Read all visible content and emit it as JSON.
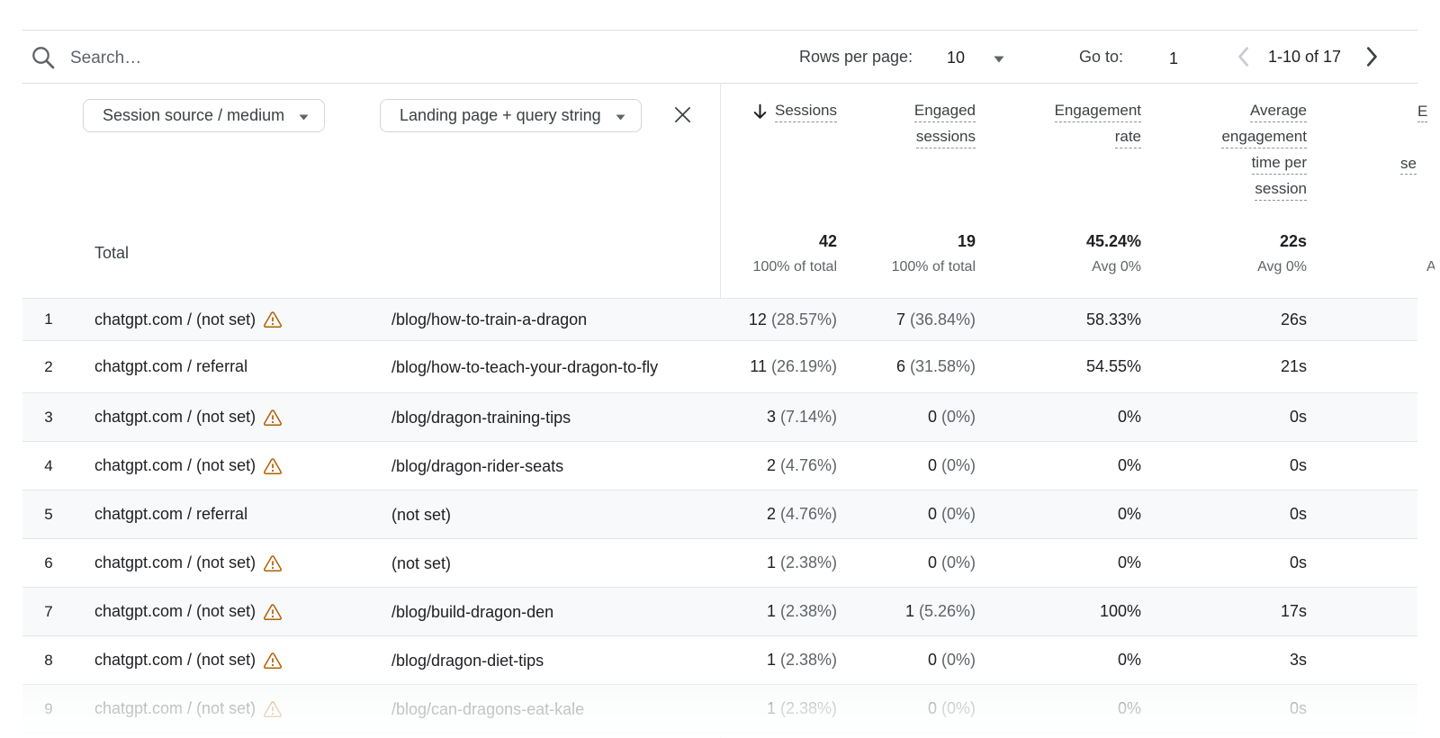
{
  "toolbar": {
    "search_placeholder": "Search…",
    "rows_per_page_label": "Rows per page:",
    "rows_per_page_value": "10",
    "goto_label": "Go to:",
    "goto_value": "1",
    "range_text": "1-10 of 17"
  },
  "filters": {
    "dimension1": "Session source / medium",
    "dimension2": "Landing page + query string"
  },
  "table": {
    "total_label": "Total",
    "columns": [
      {
        "id": "sessions",
        "lines": [
          "Sessions"
        ],
        "sorted": true
      },
      {
        "id": "engaged-sessions",
        "lines": [
          "Engaged",
          "sessions"
        ],
        "sorted": false
      },
      {
        "id": "engagement-rate",
        "lines": [
          "Engagement",
          "rate"
        ],
        "sorted": false
      },
      {
        "id": "avg-engagement-time",
        "lines": [
          "Average",
          "engagement",
          "time per",
          "session"
        ],
        "sorted": false
      }
    ],
    "clipped_column": {
      "line1_fragment": "E",
      "line3_fragment": "se",
      "total_fragment": "A"
    },
    "total": [
      {
        "value": "42",
        "sub": "100% of total"
      },
      {
        "value": "19",
        "sub": "100% of total"
      },
      {
        "value": "45.24%",
        "sub": "Avg 0%"
      },
      {
        "value": "22s",
        "sub": "Avg 0%"
      }
    ],
    "rows": [
      {
        "index": "1",
        "source_medium": "chatgpt.com / (not set)",
        "warning": true,
        "landing_page": "/blog/how-to-train-a-dragon",
        "sessions": "12",
        "sessions_share": "(28.57%)",
        "engaged": "7",
        "engaged_share": "(36.84%)",
        "rate": "58.33%",
        "avg_time": "26s"
      },
      {
        "index": "2",
        "source_medium": "chatgpt.com / referral",
        "warning": false,
        "landing_page": "/blog/how-to-teach-your-dragon-to-fly",
        "sessions": "11",
        "sessions_share": "(26.19%)",
        "engaged": "6",
        "engaged_share": "(31.58%)",
        "rate": "54.55%",
        "avg_time": "21s"
      },
      {
        "index": "3",
        "source_medium": "chatgpt.com / (not set)",
        "warning": true,
        "landing_page": "/blog/dragon-training-tips",
        "sessions": "3",
        "sessions_share": "(7.14%)",
        "engaged": "0",
        "engaged_share": "(0%)",
        "rate": "0%",
        "avg_time": "0s"
      },
      {
        "index": "4",
        "source_medium": "chatgpt.com / (not set)",
        "warning": true,
        "landing_page": "/blog/dragon-rider-seats",
        "sessions": "2",
        "sessions_share": "(4.76%)",
        "engaged": "0",
        "engaged_share": "(0%)",
        "rate": "0%",
        "avg_time": "0s"
      },
      {
        "index": "5",
        "source_medium": "chatgpt.com / referral",
        "warning": false,
        "landing_page": "(not set)",
        "sessions": "2",
        "sessions_share": "(4.76%)",
        "engaged": "0",
        "engaged_share": "(0%)",
        "rate": "0%",
        "avg_time": "0s"
      },
      {
        "index": "6",
        "source_medium": "chatgpt.com / (not set)",
        "warning": true,
        "landing_page": "(not set)",
        "sessions": "1",
        "sessions_share": "(2.38%)",
        "engaged": "0",
        "engaged_share": "(0%)",
        "rate": "0%",
        "avg_time": "0s"
      },
      {
        "index": "7",
        "source_medium": "chatgpt.com / (not set)",
        "warning": true,
        "landing_page": "/blog/build-dragon-den",
        "sessions": "1",
        "sessions_share": "(2.38%)",
        "engaged": "1",
        "engaged_share": "(5.26%)",
        "rate": "100%",
        "avg_time": "17s"
      },
      {
        "index": "8",
        "source_medium": "chatgpt.com / (not set)",
        "warning": true,
        "landing_page": "/blog/dragon-diet-tips",
        "sessions": "1",
        "sessions_share": "(2.38%)",
        "engaged": "0",
        "engaged_share": "(0%)",
        "rate": "0%",
        "avg_time": "3s"
      },
      {
        "index": "9",
        "source_medium": "chatgpt.com / (not set)",
        "warning": true,
        "landing_page": "/blog/can-dragons-eat-kale",
        "sessions": "1",
        "sessions_share": "(2.38%)",
        "engaged": "0",
        "engaged_share": "(0%)",
        "rate": "0%",
        "avg_time": "0s"
      }
    ]
  },
  "icons": {
    "search-icon": "magnifier",
    "dropdown-caret-icon": "▾",
    "close-icon": "✕",
    "sort-descending-icon": "↓",
    "warning-icon": "⚠ outlined triangle",
    "chevron-left-icon": "‹",
    "chevron-right-icon": "›"
  },
  "colors": {
    "warning": "#b06000",
    "zebra_row": "#f8f9fa",
    "border": "#e3e6e8",
    "text_primary": "#202124",
    "text_secondary": "#5f6368",
    "disabled_control": "#c7cacf"
  }
}
